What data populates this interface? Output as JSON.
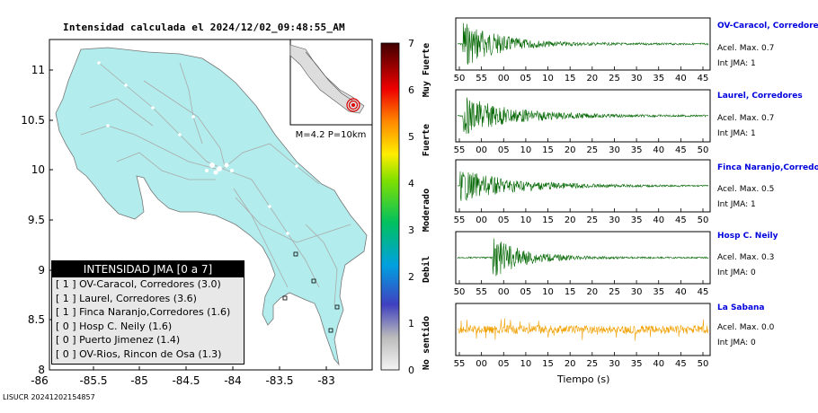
{
  "title": "Intensidad calculada el 2024/12/02_09:48:55_AM",
  "footer_id": "LISUCR 20241202154857",
  "map": {
    "lat_ticks": [
      "11",
      "10.5",
      "10",
      "9.5",
      "9",
      "8.5",
      "8"
    ],
    "lon_ticks": [
      "-86",
      "-85.5",
      "-85",
      "-84.5",
      "-84",
      "-83.5",
      "-83"
    ],
    "inset_label": "M=4.2 P=10km",
    "land_color": "#b2ecec",
    "epicenter_color": "#dd0000"
  },
  "scale": {
    "ticks": [
      "7",
      "6",
      "5",
      "4",
      "3",
      "2",
      "1",
      "0"
    ],
    "labels": [
      "Muy Fuerte",
      "Fuerte",
      "Moderado",
      "Debil",
      "No sentido"
    ]
  },
  "legend": {
    "header": "INTENSIDAD JMA [0 a 7]",
    "rows": [
      "[ 1 ]  OV-Caracol, Corredores (3.0)",
      "[ 1 ]  Laurel, Corredores (3.6)",
      "[ 1 ]  Finca Naranjo,Corredores (1.6)",
      "[ 0 ]  Hosp C. Neily (1.6)",
      "[ 0 ]  Puerto Jimenez (1.4)",
      "[ 0 ]  OV-Rios, Rincon de Osa (1.3)"
    ]
  },
  "stations": [
    {
      "name": "OV-Caracol, Corredore",
      "acel": "Acel. Max. 0.7",
      "jma": "Int JMA: 1",
      "color": "#006600",
      "ticks": [
        "50",
        "55",
        "00",
        "05",
        "10",
        "15",
        "20",
        "25",
        "30",
        "35",
        "40",
        "45"
      ],
      "amp": 1.0,
      "onset": 0.02,
      "decay": 0.14
    },
    {
      "name": "Laurel, Corredores",
      "acel": "Acel. Max. 0.7",
      "jma": "Int JMA: 1",
      "color": "#006600",
      "ticks": [
        "55",
        "00",
        "05",
        "10",
        "15",
        "20",
        "25",
        "30",
        "35",
        "40",
        "45",
        "50"
      ],
      "amp": 0.8,
      "onset": 0.02,
      "decay": 0.2
    },
    {
      "name": "Finca Naranjo,Corredor",
      "acel": "Acel. Max. 0.5",
      "jma": "Int JMA: 1",
      "color": "#006600",
      "ticks": [
        "55",
        "00",
        "05",
        "10",
        "15",
        "20",
        "25",
        "30",
        "35",
        "40",
        "45",
        "50"
      ],
      "amp": 0.65,
      "onset": 0.01,
      "decay": 0.22
    },
    {
      "name": "Hosp C. Neily",
      "acel": "Acel. Max. 0.3",
      "jma": "Int JMA: 0",
      "color": "#006600",
      "ticks": [
        "50",
        "55",
        "00",
        "05",
        "10",
        "15",
        "20",
        "25",
        "30",
        "35",
        "40",
        "45"
      ],
      "amp": 0.85,
      "onset": 0.14,
      "decay": 0.12
    },
    {
      "name": "La Sabana",
      "acel": "Acel. Max. 0.0",
      "jma": "Int JMA: 0",
      "color": "#f0a000",
      "ticks": [
        "55",
        "00",
        "05",
        "10",
        "15",
        "20",
        "25",
        "30",
        "35",
        "40",
        "45",
        "50"
      ],
      "amp": 0.5,
      "onset": 0.0,
      "decay": 0
    }
  ],
  "xlabel": "Tiempo (s)"
}
